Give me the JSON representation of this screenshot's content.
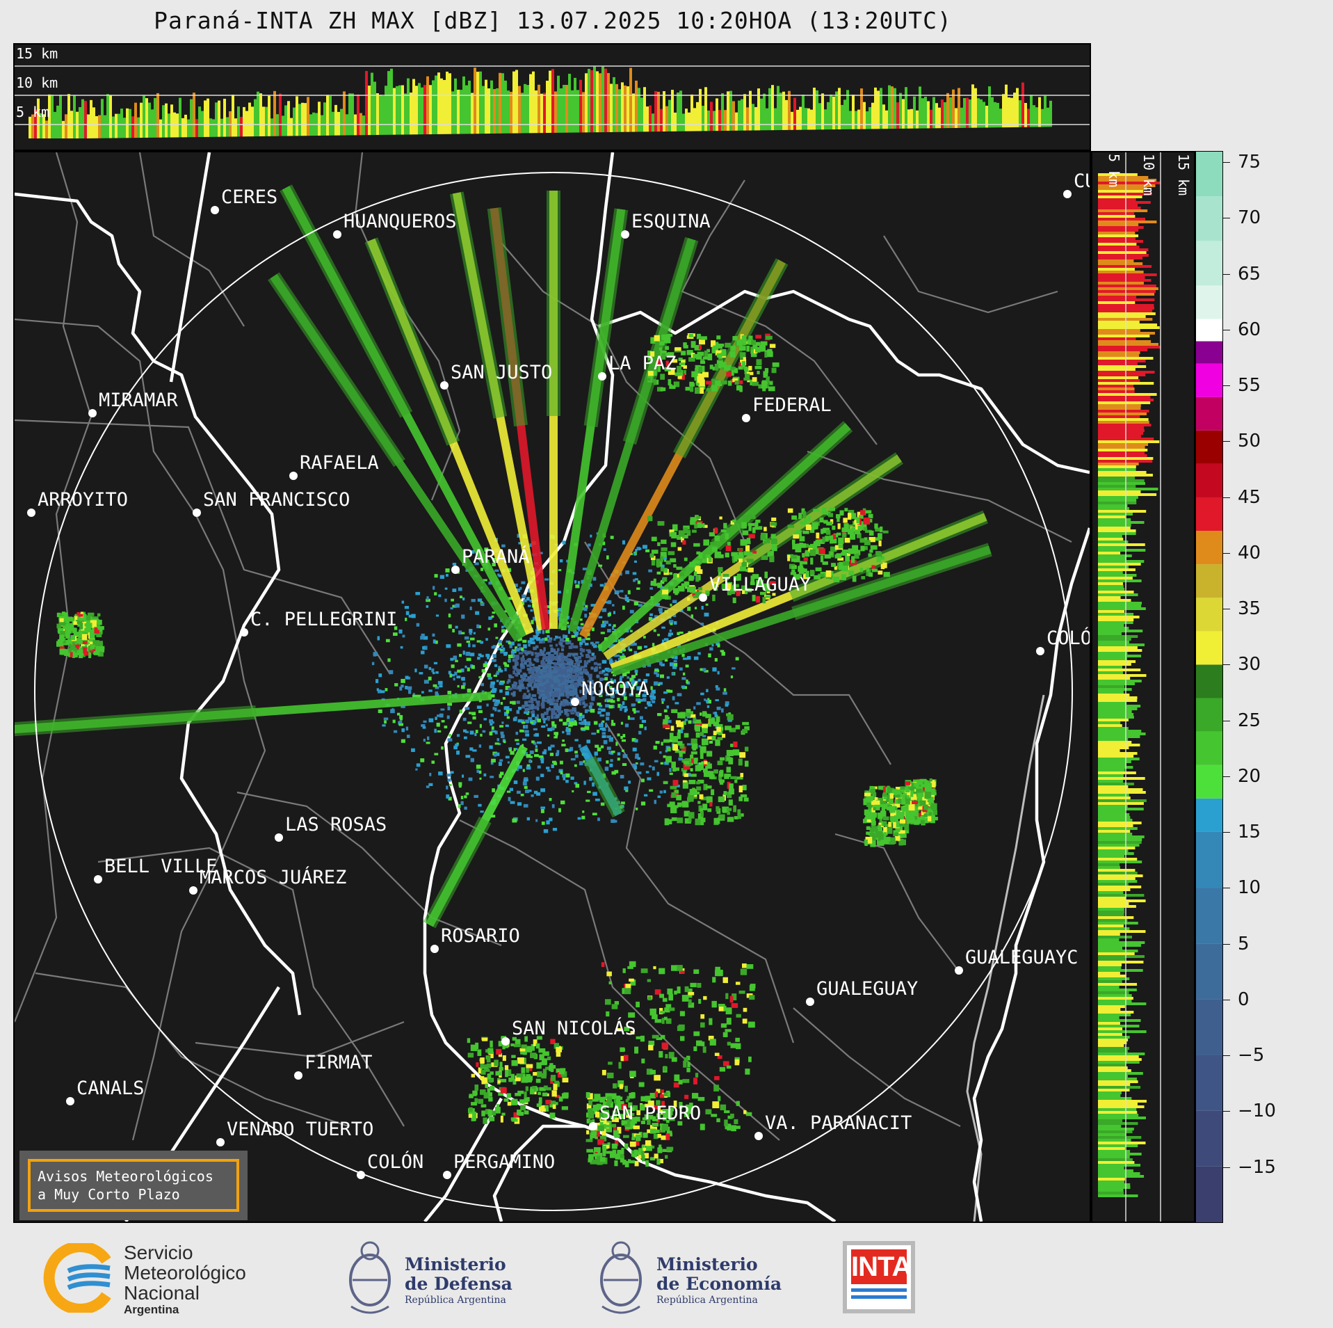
{
  "title": "Paraná-INTA ZH MAX [dBZ] 13.07.2025 10:20HOA (13:20UTC)",
  "top_section": {
    "altitude_labels": [
      "15 km",
      "10 km",
      "5 km"
    ]
  },
  "right_section": {
    "altitude_labels": [
      "5 km",
      "10 km",
      "15 km"
    ]
  },
  "colorbar": {
    "unit": "dBZ",
    "tick_labels": [
      "75",
      "70",
      "65",
      "60",
      "55",
      "50",
      "45",
      "40",
      "35",
      "30",
      "25",
      "20",
      "15",
      "10",
      "5",
      "0",
      "−5",
      "−10",
      "−15"
    ],
    "range": [
      -20,
      76
    ],
    "bands": [
      {
        "from": -20,
        "to": -15,
        "color": "#3b3f6e"
      },
      {
        "from": -15,
        "to": -10,
        "color": "#3e4a7a"
      },
      {
        "from": -10,
        "to": -5,
        "color": "#3f5586"
      },
      {
        "from": -5,
        "to": 0,
        "color": "#3f608f"
      },
      {
        "from": 0,
        "to": 5,
        "color": "#3e6c9a"
      },
      {
        "from": 5,
        "to": 10,
        "color": "#3a78a8"
      },
      {
        "from": 10,
        "to": 15,
        "color": "#3488b8"
      },
      {
        "from": 15,
        "to": 18,
        "color": "#2aa0d0"
      },
      {
        "from": 18,
        "to": 21,
        "color": "#4ee03a"
      },
      {
        "from": 21,
        "to": 24,
        "color": "#45c52f"
      },
      {
        "from": 24,
        "to": 27,
        "color": "#3aa828"
      },
      {
        "from": 27,
        "to": 30,
        "color": "#2c7d1e"
      },
      {
        "from": 30,
        "to": 33,
        "color": "#f1ee36"
      },
      {
        "from": 33,
        "to": 36,
        "color": "#dcd735"
      },
      {
        "from": 36,
        "to": 39,
        "color": "#c9b22c"
      },
      {
        "from": 39,
        "to": 42,
        "color": "#df8b1b"
      },
      {
        "from": 42,
        "to": 45,
        "color": "#e0182a"
      },
      {
        "from": 45,
        "to": 48,
        "color": "#c4081f"
      },
      {
        "from": 48,
        "to": 51,
        "color": "#9a0000"
      },
      {
        "from": 51,
        "to": 54,
        "color": "#c20062"
      },
      {
        "from": 54,
        "to": 57,
        "color": "#f000e0"
      },
      {
        "from": 57,
        "to": 59,
        "color": "#8a0090"
      },
      {
        "from": 59,
        "to": 61,
        "color": "#ffffff"
      },
      {
        "from": 61,
        "to": 64,
        "color": "#dff5ec"
      },
      {
        "from": 64,
        "to": 68,
        "color": "#c2ecdb"
      },
      {
        "from": 68,
        "to": 72,
        "color": "#a8e4cd"
      },
      {
        "from": 72,
        "to": 76,
        "color": "#8cdcbd"
      }
    ]
  },
  "cities": [
    {
      "name": "CERES"
    },
    {
      "name": "HUANQUEROS"
    },
    {
      "name": "ESQUINA"
    },
    {
      "name": "CU"
    },
    {
      "name": "SAN JUSTO"
    },
    {
      "name": "LA PAZ"
    },
    {
      "name": "MIRAMAR"
    },
    {
      "name": "FEDERAL"
    },
    {
      "name": "RAFAELA"
    },
    {
      "name": "ARROYITO"
    },
    {
      "name": "SAN FRANCISCO"
    },
    {
      "name": "PARANÁ"
    },
    {
      "name": "VILLAGUAY"
    },
    {
      "name": "C. PELLEGRINI"
    },
    {
      "name": "COLÓ"
    },
    {
      "name": "NOGOYA"
    },
    {
      "name": "LAS ROSAS"
    },
    {
      "name": "BELL VILLE"
    },
    {
      "name": "MARCOS JUÁREZ"
    },
    {
      "name": "ROSARIO"
    },
    {
      "name": "GUALEGUAYC"
    },
    {
      "name": "GUALEGUAY"
    },
    {
      "name": "SAN NICOLÁS"
    },
    {
      "name": "FIRMAT"
    },
    {
      "name": "CANALS"
    },
    {
      "name": "SAN PEDRO"
    },
    {
      "name": "VENADO TUERTO"
    },
    {
      "name": "VA. PARANACIT"
    },
    {
      "name": "COLÓN"
    },
    {
      "name": "PERGAMINO"
    }
  ],
  "warning_box": {
    "line1": "Avisos Meteorológicos",
    "line2": "a Muy Corto Plazo"
  },
  "logos": {
    "smn": {
      "line1": "Servicio",
      "line2": "Meteorológico",
      "line3": "Nacional",
      "line4": "Argentina"
    },
    "defensa": {
      "line1": "Ministerio",
      "line2": "de Defensa",
      "line3": "República Argentina"
    },
    "economia": {
      "line1": "Ministerio",
      "line2": "de Economía",
      "line3": "República Argentina"
    },
    "inta": {
      "text": "INTA"
    }
  }
}
